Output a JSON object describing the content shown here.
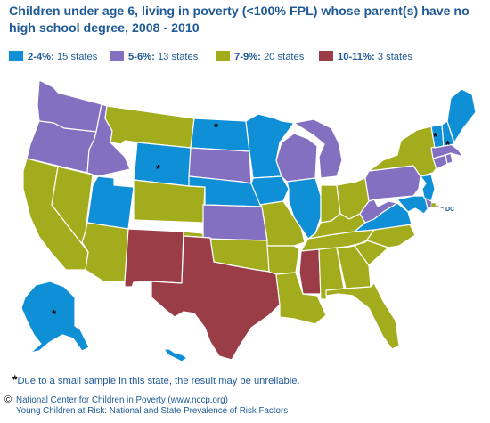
{
  "title_line1": "Children under age 6, living in poverty (<100% FPL) whose parent(s) have no",
  "title_line2": "high school degree, 2008 - 2010",
  "legend": [
    {
      "range": "2-4%:",
      "count": " 15 states",
      "color": "#0f8fd6"
    },
    {
      "range": "5-6%:",
      "count": " 13 states",
      "color": "#8470c0"
    },
    {
      "range": "7-9%:",
      "count": " 20 states",
      "color": "#a2ac1c"
    },
    {
      "range": "10-11%:",
      "count": " 3 states",
      "color": "#9a3d47"
    }
  ],
  "star_symbol": "*",
  "dc_label": "DC",
  "footnote_star": "*",
  "footnote_text": "Due to a small sample in this state, the result may be unreliable.",
  "copyright_symbol": "©",
  "credit_line1": "National Center for Children in Poverty (www.nccp.org)",
  "credit_line2": "Young Children at Risk: National and State Prevalence of Risk Factors",
  "map_data": {
    "categories": {
      "blue": "2-4%",
      "purple": "5-6%",
      "olive": "7-9%",
      "red": "10-11%"
    },
    "states_by_category": {
      "2-4%": [
        "WY",
        "ND",
        "MN",
        "IA",
        "NE",
        "UT",
        "IL",
        "VA",
        "NJ",
        "MD",
        "VT",
        "NH",
        "ME",
        "AK",
        "HI"
      ],
      "5-6%": [
        "WA",
        "OR",
        "ID",
        "SD",
        "KS",
        "WI",
        "MI",
        "PA",
        "WV",
        "DE",
        "CT",
        "RI",
        "MA"
      ],
      "7-9%": [
        "CA",
        "NV",
        "AZ",
        "MT",
        "CO",
        "MO",
        "OK",
        "AR",
        "LA",
        "AL",
        "GA",
        "FL",
        "SC",
        "NC",
        "TN",
        "KY",
        "IN",
        "OH",
        "NY",
        "DC"
      ],
      "10-11%": [
        "NM",
        "TX",
        "MS"
      ]
    },
    "unreliable_states": [
      "ND",
      "WY",
      "AK",
      "VT",
      "NH"
    ]
  }
}
